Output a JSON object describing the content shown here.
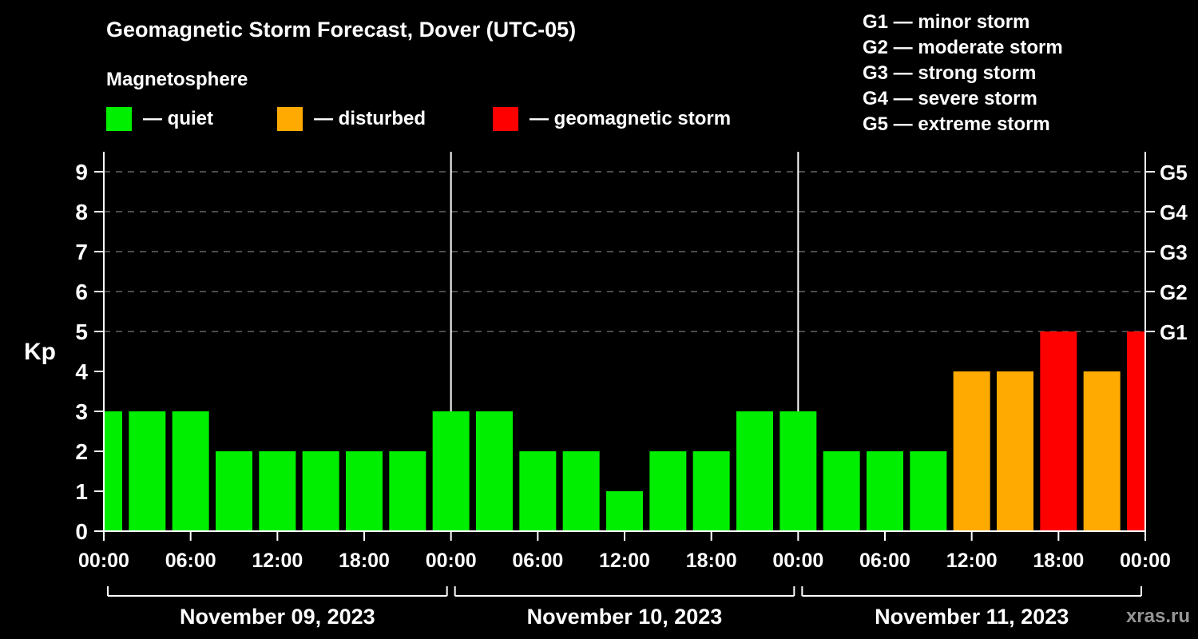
{
  "page": {
    "background": "#000000",
    "foreground": "#ffffff"
  },
  "header": {
    "title": "Geomagnetic Storm Forecast, Dover (UTC-05)",
    "subtitle": "Magnetosphere"
  },
  "storm_scale": {
    "lines": [
      "G1 — minor storm",
      "G2 — moderate storm",
      "G3 — strong storm",
      "G4 — severe storm",
      "G5 — extreme storm"
    ]
  },
  "legend": {
    "items": [
      {
        "key": "quiet",
        "color": "#00ee00",
        "label": "— quiet"
      },
      {
        "key": "disturbed",
        "color": "#ffaa00",
        "label": "— disturbed"
      },
      {
        "key": "storm",
        "color": "#ff0000",
        "label": "— geomagnetic storm"
      }
    ]
  },
  "watermark": "xras.ru",
  "chart_data": {
    "type": "bar",
    "title": "Geomagnetic Storm Forecast, Dover (UTC-05)",
    "xlabel": "",
    "ylabel": "Kp",
    "ylim": [
      0,
      9.5
    ],
    "y_ticks": [
      0,
      1,
      2,
      3,
      4,
      5,
      6,
      7,
      8,
      9
    ],
    "grid_levels": [
      5,
      6,
      7,
      8,
      9
    ],
    "grid_style": "dashed",
    "right_axis": [
      {
        "kp": 5,
        "label": "G1"
      },
      {
        "kp": 6,
        "label": "G2"
      },
      {
        "kp": 7,
        "label": "G3"
      },
      {
        "kp": 8,
        "label": "G4"
      },
      {
        "kp": 9,
        "label": "G5"
      }
    ],
    "x_tick_interval_hours": 6,
    "x_tick_labels": [
      "00:00",
      "06:00",
      "12:00",
      "18:00",
      "00:00",
      "06:00",
      "12:00",
      "18:00",
      "00:00",
      "06:00",
      "12:00",
      "18:00",
      "00:00"
    ],
    "days": [
      "November 09, 2023",
      "November 10, 2023",
      "November 11, 2023"
    ],
    "bar_interval_hours": 3,
    "total_hours": 72,
    "kp_values": [
      3,
      3,
      3,
      2,
      2,
      2,
      2,
      2,
      3,
      3,
      2,
      2,
      1,
      2,
      2,
      3,
      3,
      2,
      2,
      2,
      4,
      4,
      5,
      4,
      5
    ],
    "colors": {
      "quiet": "#00ee00",
      "disturbed": "#ffaa00",
      "storm": "#ff0000"
    },
    "thresholds": {
      "disturbed_min": 4,
      "storm_min": 5
    },
    "legend_labels": {
      "quiet": "quiet",
      "disturbed": "disturbed",
      "storm": "geomagnetic storm"
    },
    "legend_position": "top-left"
  }
}
